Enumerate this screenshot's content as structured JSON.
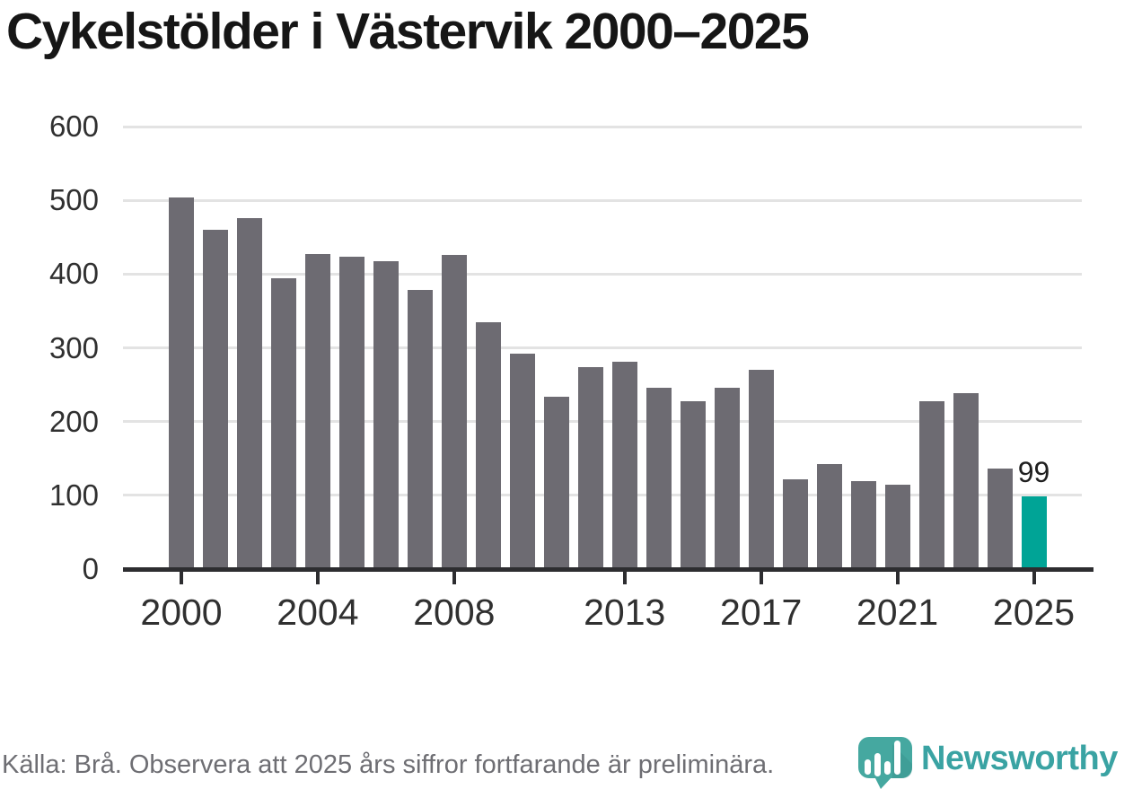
{
  "title": "Cykelstölder i Västervik 2000–2025",
  "footer": {
    "source_note": "Källa: Brå. Observera att 2025 års siffror fortfarande är preliminära."
  },
  "branding": {
    "logo_text": "Newsworthy",
    "logo_icon": "newsworthy-bubble-bar-chart-icon",
    "icon_teal": "#45a8a0",
    "icon_shadow_teal": "#3b968f",
    "wordmark_teal": "#3aa3a3"
  },
  "chart_data": {
    "type": "bar",
    "title": "Cykelstölder i Västervik 2000–2025",
    "categories": [
      2000,
      2001,
      2002,
      2003,
      2004,
      2005,
      2006,
      2007,
      2008,
      2009,
      2010,
      2011,
      2012,
      2013,
      2014,
      2015,
      2016,
      2017,
      2018,
      2019,
      2020,
      2021,
      2022,
      2023,
      2024,
      2025
    ],
    "values": [
      504,
      460,
      476,
      394,
      427,
      424,
      418,
      378,
      426,
      335,
      292,
      234,
      274,
      281,
      246,
      228,
      246,
      270,
      122,
      143,
      119,
      114,
      228,
      239,
      136,
      99
    ],
    "highlight_category": 2025,
    "highlight_index": 25,
    "highlight_value_label": "99",
    "bar_color": "#6d6b72",
    "highlight_color": "#00a496",
    "y_ticks": [
      0,
      100,
      200,
      300,
      400,
      500,
      600
    ],
    "ylim": [
      0,
      600
    ],
    "x_tick_labels": [
      "2000",
      "2004",
      "2008",
      "2013",
      "2017",
      "2021",
      "2025"
    ],
    "x_tick_years": [
      2000,
      2004,
      2008,
      2013,
      2017,
      2021,
      2025
    ],
    "grid": "horizontal-only",
    "gridline_color": "#e3e3e3",
    "axis_color": "#2d2d30",
    "tick_label_color": "#303030",
    "legend": "none",
    "xlabel": "",
    "ylabel": ""
  }
}
